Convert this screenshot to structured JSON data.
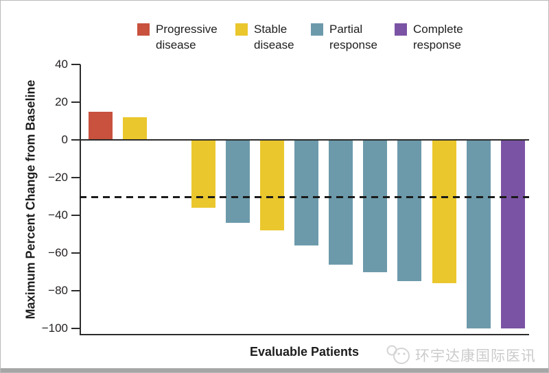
{
  "legend": {
    "items": [
      {
        "key": "progressive-disease",
        "line1": "Progressive",
        "line2": "disease",
        "color": "#C8523E"
      },
      {
        "key": "stable-disease",
        "line1": "Stable",
        "line2": "disease",
        "color": "#EAC72D"
      },
      {
        "key": "partial-response",
        "line1": "Partial",
        "line2": "response",
        "color": "#6C9AAB"
      },
      {
        "key": "complete-response",
        "line1": "Complete",
        "line2": "response",
        "color": "#7B53A4"
      }
    ]
  },
  "chart_data": {
    "type": "bar",
    "subtype": "waterfall",
    "title": "",
    "ylabel": "Maximum Percent Change from Baseline",
    "xlabel": "Evaluable Patients",
    "ylim": [
      40,
      -100
    ],
    "yticks": [
      40,
      20,
      0,
      -20,
      -40,
      -60,
      -80,
      -100
    ],
    "ytick_labels": [
      "40",
      "20",
      "0",
      "−20",
      "−40",
      "−60",
      "−80",
      "−100"
    ],
    "grid": false,
    "legend_position": "top",
    "reference_line": {
      "y": -30,
      "style": "dashed",
      "color": "#1A1A1A"
    },
    "patients": [
      {
        "value": 15,
        "response": "progressive-disease"
      },
      {
        "value": 12,
        "response": "stable-disease"
      },
      {
        "value": 0,
        "response": "not-visible"
      },
      {
        "value": -36,
        "response": "stable-disease"
      },
      {
        "value": -44,
        "response": "partial-response"
      },
      {
        "value": -48,
        "response": "stable-disease"
      },
      {
        "value": -56,
        "response": "partial-response"
      },
      {
        "value": -66,
        "response": "partial-response"
      },
      {
        "value": -70,
        "response": "partial-response"
      },
      {
        "value": -75,
        "response": "partial-response"
      },
      {
        "value": -76,
        "response": "stable-disease"
      },
      {
        "value": -100,
        "response": "partial-response"
      },
      {
        "value": -100,
        "response": "complete-response"
      }
    ],
    "colors": {
      "progressive-disease": "#C8523E",
      "stable-disease": "#EAC72D",
      "partial-response": "#6C9AAB",
      "complete-response": "#7B53A4",
      "not-visible": "transparent"
    },
    "axis_color": "#2B2B2B"
  },
  "watermark": {
    "logo_icon": "chat-bubble-face-logo",
    "text": "环宇达康国际医讯",
    "color": "#CBCBCB"
  }
}
